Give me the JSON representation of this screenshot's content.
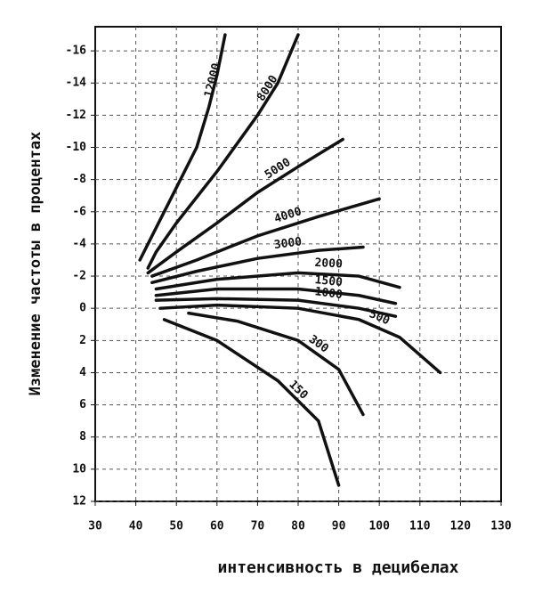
{
  "chart_data": {
    "type": "line",
    "ylabel": "Изменение частоты в процентах",
    "xlabel": "интенсивность в децибелах",
    "xlim": [
      30,
      130
    ],
    "xticks": [
      30,
      40,
      50,
      60,
      70,
      80,
      90,
      100,
      110,
      120,
      130
    ],
    "ylim": [
      12,
      -17.5
    ],
    "yticks": [
      -16,
      -14,
      -12,
      -10,
      -8,
      -6,
      -4,
      -2,
      0,
      2,
      4,
      6,
      8,
      10,
      12
    ],
    "grid": true,
    "color": "#111111",
    "series": [
      {
        "name": "12000",
        "x": [
          41,
          45,
          50,
          55,
          58,
          60,
          62
        ],
        "values": [
          -3,
          -5,
          -7.5,
          -10,
          -12.5,
          -14.5,
          -17
        ]
      },
      {
        "name": "8000",
        "x": [
          43,
          45,
          50,
          60,
          70,
          75,
          80
        ],
        "values": [
          -2.5,
          -3.5,
          -5.3,
          -8.5,
          -12,
          -14,
          -17
        ]
      },
      {
        "name": "5000",
        "x": [
          43,
          50,
          60,
          70,
          80,
          91
        ],
        "values": [
          -2.2,
          -3.5,
          -5.3,
          -7.2,
          -8.8,
          -10.5
        ]
      },
      {
        "name": "4000",
        "x": [
          44,
          55,
          70,
          85,
          100
        ],
        "values": [
          -2,
          -3,
          -4.5,
          -5.7,
          -6.8
        ]
      },
      {
        "name": "3000",
        "x": [
          44,
          55,
          70,
          85,
          96
        ],
        "values": [
          -1.6,
          -2.3,
          -3.1,
          -3.6,
          -3.8
        ]
      },
      {
        "name": "2000",
        "x": [
          45,
          60,
          80,
          95,
          105
        ],
        "values": [
          -1.2,
          -1.8,
          -2.2,
          -2,
          -1.3
        ]
      },
      {
        "name": "1500",
        "x": [
          45,
          60,
          80,
          95,
          104
        ],
        "values": [
          -0.8,
          -1.2,
          -1.2,
          -0.8,
          -0.3
        ]
      },
      {
        "name": "1000",
        "x": [
          45,
          60,
          80,
          95,
          104
        ],
        "values": [
          -0.5,
          -0.6,
          -0.5,
          0,
          0.5
        ]
      },
      {
        "name": "500",
        "x": [
          46,
          60,
          80,
          95,
          105,
          115
        ],
        "values": [
          0,
          -0.2,
          0,
          0.7,
          1.8,
          4
        ]
      },
      {
        "name": "300",
        "x": [
          53,
          65,
          80,
          90,
          96
        ],
        "values": [
          0.3,
          0.8,
          2,
          3.8,
          6.6
        ]
      },
      {
        "name": "150",
        "x": [
          47,
          60,
          75,
          85,
          90
        ],
        "values": [
          0.7,
          2,
          4.5,
          7,
          11
        ]
      }
    ]
  }
}
